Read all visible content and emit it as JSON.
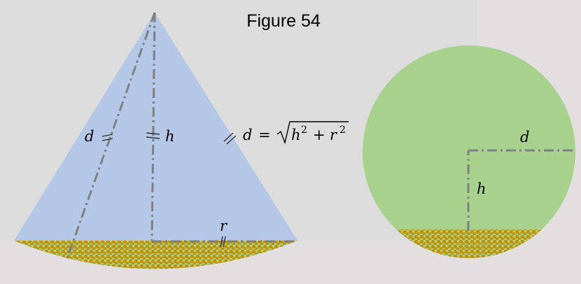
{
  "figure": {
    "title": "Figure 54",
    "labels": {
      "slant": "d",
      "height": "h",
      "radius": "r",
      "circle_radius": "d",
      "circle_height": "h"
    },
    "formula": {
      "lhs": "d",
      "equals": "=",
      "h": "h",
      "plus": "+",
      "r": "r",
      "exponent": "2"
    },
    "colors": {
      "panel": "#dcdcdc",
      "background": "#e3dedf",
      "cone": "#b4c7e7",
      "circle": "#a9d18e",
      "dots": "#bf9000",
      "dashed_line": "#7f7f7f"
    }
  }
}
